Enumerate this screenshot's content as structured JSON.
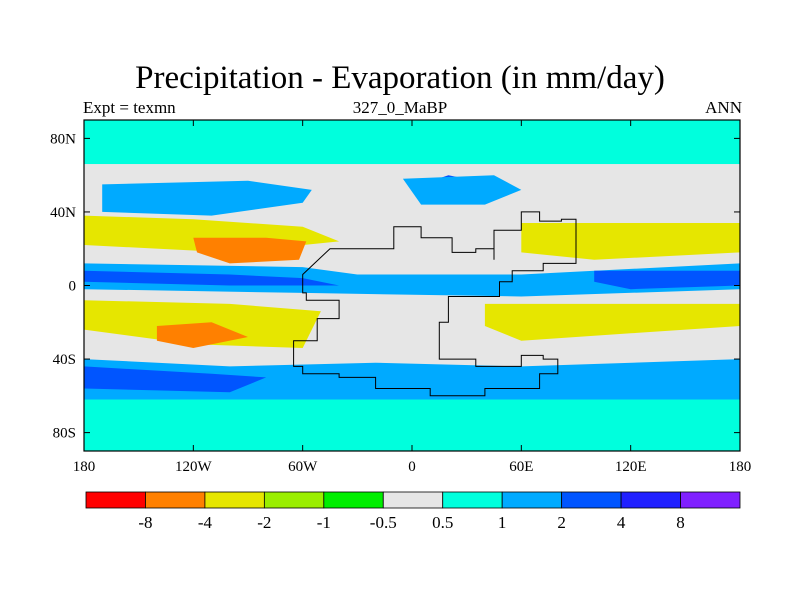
{
  "chart_data": {
    "type": "heatmap",
    "title": "Precipitation - Evaporation (in mm/day)",
    "subtitle_left": "Expt = texmn",
    "subtitle_center": "327_0_MaBP",
    "subtitle_right": "ANN",
    "projection": "cylindrical equidistant",
    "x_range": [
      -180,
      180
    ],
    "y_range": [
      -90,
      90
    ],
    "x_ticks": [
      {
        "value": -180,
        "label": "180"
      },
      {
        "value": -120,
        "label": "120W"
      },
      {
        "value": -60,
        "label": "60W"
      },
      {
        "value": 0,
        "label": "0"
      },
      {
        "value": 60,
        "label": "60E"
      },
      {
        "value": 120,
        "label": "120E"
      },
      {
        "value": 180,
        "label": "180"
      }
    ],
    "y_ticks": [
      {
        "value": 80,
        "label": "80N"
      },
      {
        "value": 40,
        "label": "40N"
      },
      {
        "value": 0,
        "label": "0"
      },
      {
        "value": -40,
        "label": "40S"
      },
      {
        "value": -80,
        "label": "80S"
      }
    ],
    "colorbar": {
      "levels": [
        "-8",
        "-4",
        "-2",
        "-1",
        "-0.5",
        "0.5",
        "1",
        "2",
        "4",
        "8"
      ],
      "colors": [
        "#ff0000",
        "#ff8000",
        "#e6e600",
        "#9aee00",
        "#00ee00",
        "#e6e6e6",
        "#00ffdd",
        "#00aaff",
        "#0055ff",
        "#2020ff",
        "#8020ff"
      ]
    },
    "field_regions": [
      {
        "class": 6,
        "desc": "polar bands N",
        "pts": [
          [
            -180,
            90
          ],
          [
            180,
            90
          ],
          [
            180,
            66
          ],
          [
            -180,
            66
          ]
        ]
      },
      {
        "class": 5,
        "desc": "north mid-lat dry strip",
        "pts": [
          [
            -180,
            66
          ],
          [
            180,
            66
          ],
          [
            180,
            56
          ],
          [
            -180,
            56
          ]
        ]
      },
      {
        "class": 8,
        "desc": "north storm track Pacific",
        "pts": [
          [
            -150,
            52
          ],
          [
            -120,
            55
          ],
          [
            -90,
            53
          ],
          [
            -70,
            50
          ],
          [
            -80,
            44
          ],
          [
            -115,
            42
          ],
          [
            -150,
            46
          ]
        ]
      },
      {
        "class": 7,
        "desc": "north storm track halo",
        "pts": [
          [
            -170,
            55
          ],
          [
            -90,
            57
          ],
          [
            -55,
            52
          ],
          [
            -60,
            45
          ],
          [
            -110,
            38
          ],
          [
            -170,
            40
          ]
        ]
      },
      {
        "class": 8,
        "desc": "north storm track Eurasia",
        "pts": [
          [
            5,
            55
          ],
          [
            20,
            60
          ],
          [
            35,
            57
          ],
          [
            30,
            50
          ],
          [
            12,
            48
          ]
        ]
      },
      {
        "class": 7,
        "desc": "Eurasia storm halo",
        "pts": [
          [
            -5,
            58
          ],
          [
            45,
            60
          ],
          [
            60,
            52
          ],
          [
            40,
            44
          ],
          [
            5,
            44
          ]
        ]
      },
      {
        "class": 2,
        "desc": "NH subtropical dry Pacific",
        "pts": [
          [
            -180,
            38
          ],
          [
            -120,
            36
          ],
          [
            -60,
            32
          ],
          [
            -40,
            24
          ],
          [
            -100,
            18
          ],
          [
            -180,
            22
          ]
        ]
      },
      {
        "class": 1,
        "desc": "NH subtropical very dry",
        "pts": [
          [
            -120,
            26
          ],
          [
            -80,
            26
          ],
          [
            -58,
            24
          ],
          [
            -62,
            14
          ],
          [
            -100,
            12
          ],
          [
            -118,
            18
          ]
        ]
      },
      {
        "class": 2,
        "desc": "NH subtropical dry Tethys",
        "pts": [
          [
            60,
            34
          ],
          [
            180,
            34
          ],
          [
            180,
            18
          ],
          [
            100,
            14
          ],
          [
            60,
            18
          ]
        ]
      },
      {
        "class": 7,
        "desc": "ITCZ band",
        "pts": [
          [
            -180,
            12
          ],
          [
            -60,
            10
          ],
          [
            -30,
            6
          ],
          [
            60,
            6
          ],
          [
            180,
            12
          ],
          [
            180,
            -2
          ],
          [
            60,
            -6
          ],
          [
            -60,
            -4
          ],
          [
            -180,
            -2
          ]
        ]
      },
      {
        "class": 8,
        "desc": "ITCZ core",
        "pts": [
          [
            -180,
            8
          ],
          [
            -100,
            6
          ],
          [
            -60,
            4
          ],
          [
            -40,
            0
          ],
          [
            -100,
            0
          ],
          [
            -180,
            2
          ]
        ]
      },
      {
        "class": 8,
        "desc": "ITCZ core east",
        "pts": [
          [
            100,
            8
          ],
          [
            180,
            8
          ],
          [
            180,
            0
          ],
          [
            120,
            -2
          ],
          [
            100,
            2
          ]
        ]
      },
      {
        "class": 2,
        "desc": "SH subtropical dry Pacific",
        "pts": [
          [
            -180,
            -8
          ],
          [
            -100,
            -10
          ],
          [
            -50,
            -14
          ],
          [
            -60,
            -34
          ],
          [
            -120,
            -32
          ],
          [
            -180,
            -24
          ]
        ]
      },
      {
        "class": 1,
        "desc": "SH subtropical very dry",
        "pts": [
          [
            -140,
            -22
          ],
          [
            -110,
            -20
          ],
          [
            -90,
            -28
          ],
          [
            -120,
            -34
          ],
          [
            -140,
            -30
          ]
        ]
      },
      {
        "class": 2,
        "desc": "SH dry Tethys",
        "pts": [
          [
            40,
            -10
          ],
          [
            180,
            -10
          ],
          [
            180,
            -22
          ],
          [
            120,
            -26
          ],
          [
            60,
            -30
          ],
          [
            40,
            -22
          ]
        ]
      },
      {
        "class": 7,
        "desc": "SH storm track",
        "pts": [
          [
            -180,
            -40
          ],
          [
            -100,
            -44
          ],
          [
            -20,
            -42
          ],
          [
            60,
            -44
          ],
          [
            180,
            -40
          ],
          [
            180,
            -62
          ],
          [
            -180,
            -62
          ]
        ]
      },
      {
        "class": 8,
        "desc": "SH storm core",
        "pts": [
          [
            -180,
            -44
          ],
          [
            -110,
            -48
          ],
          [
            -80,
            -50
          ],
          [
            -100,
            -58
          ],
          [
            -180,
            -56
          ]
        ]
      },
      {
        "class": 6,
        "desc": "southern polar",
        "pts": [
          [
            -180,
            -62
          ],
          [
            180,
            -62
          ],
          [
            180,
            -90
          ],
          [
            -180,
            -90
          ]
        ]
      }
    ],
    "land_outline": [
      [
        -45,
        20
      ],
      [
        -10,
        32
      ],
      [
        5,
        26
      ],
      [
        22,
        18
      ],
      [
        35,
        20
      ],
      [
        45,
        14
      ],
      [
        45,
        30
      ],
      [
        60,
        40
      ],
      [
        70,
        35
      ],
      [
        82,
        36
      ],
      [
        90,
        26
      ],
      [
        90,
        12
      ],
      [
        72,
        8
      ],
      [
        55,
        2
      ],
      [
        48,
        -6
      ],
      [
        28,
        -6
      ],
      [
        20,
        -20
      ],
      [
        15,
        -40
      ],
      [
        35,
        -44
      ],
      [
        60,
        -38
      ],
      [
        72,
        -40
      ],
      [
        80,
        -48
      ],
      [
        70,
        -56
      ],
      [
        40,
        -60
      ],
      [
        10,
        -56
      ],
      [
        -20,
        -50
      ],
      [
        -40,
        -48
      ],
      [
        -60,
        -44
      ],
      [
        -65,
        -30
      ],
      [
        -52,
        -18
      ],
      [
        -40,
        -8
      ],
      [
        -58,
        -4
      ],
      [
        -60,
        6
      ]
    ]
  }
}
